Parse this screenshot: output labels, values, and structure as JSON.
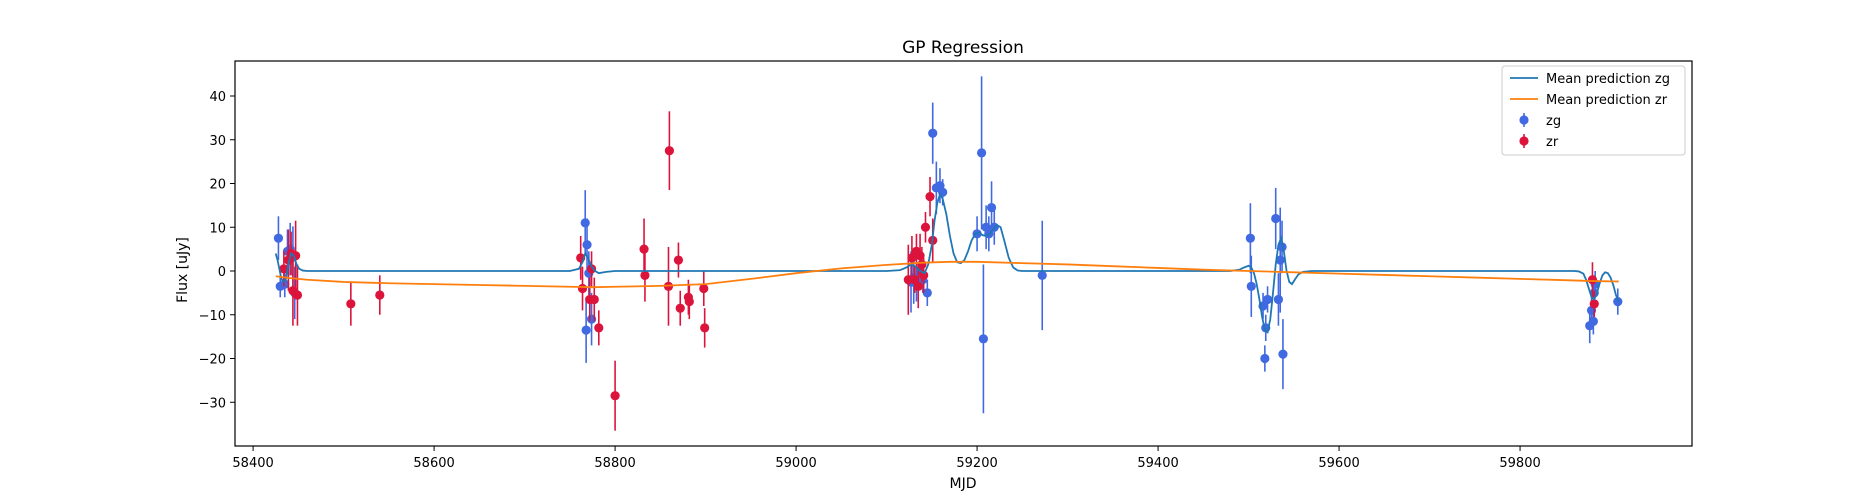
{
  "chart_data": {
    "type": "scatter",
    "title": "GP Regression",
    "xlabel": "MJD",
    "ylabel": "Flux [uJy]",
    "xlim": [
      58380,
      59990
    ],
    "ylim": [
      -40,
      48
    ],
    "xticks": [
      58400,
      58600,
      58800,
      59000,
      59200,
      59400,
      59600,
      59800
    ],
    "yticks": [
      -30,
      -20,
      -10,
      0,
      10,
      20,
      30,
      40
    ],
    "grid": false,
    "legend_position": "top-right",
    "colors": {
      "zg_line": "#1f77b4",
      "zr_line": "#ff7f0e",
      "zg_points": "#4169e1",
      "zr_points": "#dc143c"
    },
    "legend": [
      {
        "label": "Mean prediction zg",
        "kind": "line",
        "color": "#1f77b4"
      },
      {
        "label": "Mean prediction zr",
        "kind": "line",
        "color": "#ff7f0e"
      },
      {
        "label": "zg",
        "kind": "errorbar",
        "color": "#4169e1"
      },
      {
        "label": "zr",
        "kind": "errorbar",
        "color": "#dc143c"
      }
    ],
    "series": [
      {
        "name": "zg",
        "color": "#4169e1",
        "points": [
          [
            58428,
            7.5,
            5
          ],
          [
            58430,
            -3.5,
            2.5
          ],
          [
            58435,
            -3.0,
            3
          ],
          [
            58438,
            4.5,
            5
          ],
          [
            58441,
            5.0,
            6
          ],
          [
            58444,
            3.2,
            7
          ],
          [
            58446,
            -5.0,
            6
          ],
          [
            58767,
            11.0,
            7.5
          ],
          [
            58768,
            -13.5,
            7.5
          ],
          [
            58769,
            6.0,
            6
          ],
          [
            58771,
            -0.5,
            5
          ],
          [
            58774,
            -11.0,
            6
          ],
          [
            59127,
            -2.5,
            7
          ],
          [
            59130,
            -1.5,
            6
          ],
          [
            59133,
            -3.0,
            4
          ],
          [
            59137,
            0.0,
            4
          ],
          [
            59140,
            -2.0,
            3
          ],
          [
            59145,
            -5.0,
            3
          ],
          [
            59151,
            31.5,
            7
          ],
          [
            59155,
            19.0,
            6
          ],
          [
            59159,
            19.5,
            4
          ],
          [
            59162,
            18.0,
            3
          ],
          [
            59200,
            8.5,
            4
          ],
          [
            59205,
            27.0,
            17.5
          ],
          [
            59207,
            -15.5,
            17
          ],
          [
            59210,
            10.0,
            5
          ],
          [
            59213,
            8.5,
            4
          ],
          [
            59216,
            14.5,
            6
          ],
          [
            59219,
            10.0,
            4
          ],
          [
            59272,
            -1.0,
            12.5
          ],
          [
            59502,
            7.5,
            8
          ],
          [
            59503,
            -3.5,
            7
          ],
          [
            59516,
            -8.0,
            3
          ],
          [
            59518,
            -20.0,
            3
          ],
          [
            59519,
            -13.0,
            3
          ],
          [
            59521,
            -6.5,
            3
          ],
          [
            59530,
            12.0,
            7
          ],
          [
            59533,
            -6.5,
            6
          ],
          [
            59535,
            2.5,
            12
          ],
          [
            59537,
            5.5,
            6
          ],
          [
            59538,
            -19.0,
            8
          ],
          [
            59877,
            -12.5,
            4
          ],
          [
            59879,
            -9.0,
            3
          ],
          [
            59881,
            -11.5,
            3
          ],
          [
            59882,
            -5.0,
            3
          ],
          [
            59883,
            -3.0,
            3
          ],
          [
            59908,
            -7.0,
            3
          ]
        ]
      },
      {
        "name": "zr",
        "color": "#dc143c",
        "points": [
          [
            58434,
            0.5,
            4
          ],
          [
            58439,
            2.5,
            7
          ],
          [
            58442,
            4.0,
            5
          ],
          [
            58444,
            -4.5,
            8
          ],
          [
            58447,
            3.5,
            8
          ],
          [
            58449,
            -5.5,
            7
          ],
          [
            58508,
            -7.5,
            5
          ],
          [
            58540,
            -5.5,
            4.5
          ],
          [
            58762,
            3.0,
            5
          ],
          [
            58764,
            -4.0,
            5
          ],
          [
            58772,
            -6.5,
            5
          ],
          [
            58774,
            0.5,
            4
          ],
          [
            58777,
            -6.5,
            5
          ],
          [
            58782,
            -13.0,
            4
          ],
          [
            58800,
            -28.5,
            8
          ],
          [
            58832,
            5.0,
            7
          ],
          [
            58833,
            -1.0,
            6
          ],
          [
            58859,
            -3.5,
            9
          ],
          [
            58860,
            27.5,
            9
          ],
          [
            58870,
            2.5,
            4
          ],
          [
            58872,
            -8.5,
            4
          ],
          [
            58881,
            -6.0,
            4
          ],
          [
            58882,
            -7.0,
            4
          ],
          [
            58898,
            -4.0,
            4
          ],
          [
            58899,
            -13.0,
            4.5
          ],
          [
            59124,
            -2.0,
            8
          ],
          [
            59128,
            3.0,
            5
          ],
          [
            59131,
            -2.0,
            3
          ],
          [
            59133,
            4.5,
            4
          ],
          [
            59135,
            -3.5,
            5
          ],
          [
            59137,
            3.5,
            5
          ],
          [
            59139,
            1.5,
            4
          ],
          [
            59141,
            -1.0,
            4
          ],
          [
            59143,
            10.0,
            3.5
          ],
          [
            59148,
            17.0,
            4.5
          ],
          [
            59151,
            7.0,
            5
          ],
          [
            59880,
            -2.0,
            4
          ],
          [
            59882,
            -7.5,
            3
          ]
        ]
      }
    ],
    "lines": [
      {
        "name": "Mean prediction zg",
        "color": "#1f77b4",
        "x": [
          58425,
          58427,
          58429,
          58431,
          58433,
          58436,
          58439,
          58442,
          58445,
          58448,
          58451,
          58455,
          58460,
          58470,
          58500,
          58700,
          58750,
          58760,
          58764,
          58767,
          58770,
          58774,
          58778,
          58782,
          58790,
          58800,
          59000,
          59100,
          59115,
          59122,
          59127,
          59132,
          59137,
          59142,
          59146,
          59150,
          59153,
          59156,
          59159,
          59162,
          59166,
          59170,
          59174,
          59178,
          59182,
          59186,
          59190,
          59194,
          59198,
          59202,
          59206,
          59210,
          59214,
          59218,
          59222,
          59226,
          59230,
          59235,
          59240,
          59245,
          59250,
          59260,
          59300,
          59400,
          59480,
          59490,
          59495,
          59500,
          59503,
          59506,
          59509,
          59512,
          59515,
          59518,
          59521,
          59524,
          59527,
          59530,
          59533,
          59536,
          59539,
          59542,
          59545,
          59548,
          59551,
          59555,
          59560,
          59570,
          59600,
          59800,
          59860,
          59865,
          59870,
          59873,
          59876,
          59879,
          59882,
          59885,
          59888,
          59891,
          59894,
          59897,
          59900,
          59903,
          59906,
          59909
        ],
        "y": [
          4.0,
          2.5,
          0.5,
          -1.5,
          -2.5,
          -2.0,
          1.5,
          4.0,
          3.5,
          1.5,
          0.5,
          0.1,
          0.0,
          0.0,
          0.0,
          0.0,
          0.0,
          0.5,
          2.0,
          4.0,
          3.0,
          1.0,
          0.0,
          -0.5,
          -0.2,
          0.0,
          0.0,
          0.0,
          0.2,
          0.8,
          1.5,
          1.0,
          0.0,
          -0.5,
          1.5,
          6.0,
          11.5,
          15.5,
          17.5,
          16.5,
          13.0,
          8.0,
          4.0,
          2.0,
          1.8,
          2.5,
          4.5,
          7.0,
          8.5,
          8.8,
          8.2,
          8.0,
          8.5,
          9.5,
          10.5,
          10.0,
          7.0,
          3.0,
          0.8,
          0.1,
          0.0,
          0.0,
          0.0,
          0.0,
          0.0,
          0.3,
          0.8,
          1.2,
          0.8,
          -0.5,
          -3.0,
          -6.5,
          -10.5,
          -13.5,
          -14.0,
          -11.0,
          -5.0,
          1.5,
          6.0,
          7.5,
          4.5,
          0.0,
          -2.5,
          -3.0,
          -2.0,
          -0.8,
          -0.2,
          0.0,
          0.0,
          0.0,
          0.0,
          -0.1,
          -0.6,
          -2.0,
          -4.0,
          -6.0,
          -6.5,
          -5.0,
          -2.8,
          -1.0,
          -0.3,
          -0.5,
          -1.5,
          -3.2,
          -5.5,
          -7.0
        ]
      },
      {
        "name": "Mean prediction zr",
        "color": "#ff7f0e",
        "x": [
          58425,
          58440,
          58460,
          58500,
          58550,
          58600,
          58650,
          58700,
          58750,
          58775,
          58800,
          58850,
          58900,
          58950,
          59000,
          59050,
          59100,
          59140,
          59170,
          59200,
          59250,
          59300,
          59350,
          59400,
          59450,
          59500,
          59550,
          59600,
          59650,
          59700,
          59750,
          59800,
          59850,
          59880,
          59909
        ],
        "y": [
          -1.2,
          -1.6,
          -2.0,
          -2.5,
          -2.8,
          -3.0,
          -3.2,
          -3.4,
          -3.6,
          -3.7,
          -3.6,
          -3.4,
          -3.0,
          -1.8,
          -0.5,
          0.6,
          1.4,
          1.9,
          2.1,
          2.1,
          1.8,
          1.5,
          1.1,
          0.7,
          0.3,
          0.0,
          -0.3,
          -0.6,
          -0.9,
          -1.2,
          -1.5,
          -1.8,
          -2.1,
          -2.3,
          -2.4
        ]
      }
    ]
  }
}
